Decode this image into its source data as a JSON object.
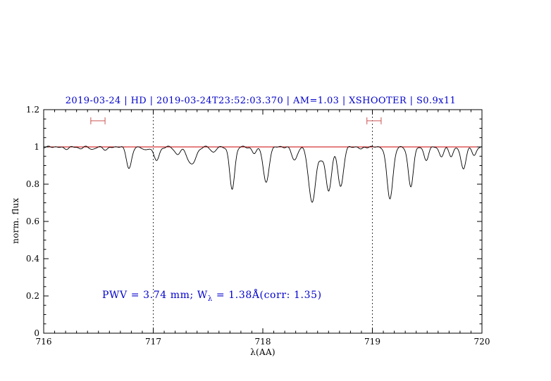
{
  "chart_data": {
    "type": "line",
    "title": "2019-03-24 | HD | 2019-03-24T23:52:03.370 | AM=1.03 | XSHOOTER | S0.9x11",
    "xlabel": "λ(AA)",
    "ylabel": "norm. flux",
    "xlim": [
      716,
      720
    ],
    "ylim": [
      0,
      1.2
    ],
    "xticks": {
      "major": [
        716,
        717,
        718,
        719,
        720
      ],
      "labels": [
        "716",
        "717",
        "718",
        "719",
        "720"
      ],
      "minor_step": 0.1
    },
    "yticks": {
      "major": [
        0,
        0.2,
        0.4,
        0.6,
        0.8,
        1,
        1.2
      ],
      "labels": [
        "0",
        "0.2",
        "0.4",
        "0.6",
        "0.8",
        "1",
        "1.2"
      ],
      "minor_step": 0.05
    },
    "grid": false,
    "legend": "none",
    "title_color": "#0000cd",
    "annotation_color": "#0000cd",
    "series_color": "#000000",
    "continuum": {
      "y": 1.0,
      "color": "#cc0000"
    },
    "dotted_vlines": [
      717,
      719
    ],
    "range_markers": [
      {
        "x1": 716.43,
        "x2": 716.56,
        "y": 1.14,
        "color": "#cc5555"
      },
      {
        "x1": 718.95,
        "x2": 719.08,
        "y": 1.14,
        "color": "#cc5555"
      }
    ],
    "annotation": {
      "text": "PWV = 3.74 mm; W_λ = 1.38Å(corr: 1.35)",
      "pre": "PWV = 3.74 mm; W",
      "sub": "λ",
      "post": " = 1.38Å(corr: 1.35)"
    },
    "spectrum_model": {
      "continuum_level": 1.0,
      "noise_amplitude": 0.003,
      "sample_step": 0.004,
      "absorption_lines": [
        {
          "center": 716.2,
          "depth": 0.01,
          "fwhm": 0.06
        },
        {
          "center": 716.33,
          "depth": 0.008,
          "fwhm": 0.05
        },
        {
          "center": 716.45,
          "depth": 0.014,
          "fwhm": 0.05
        },
        {
          "center": 716.57,
          "depth": 0.016,
          "fwhm": 0.05
        },
        {
          "center": 716.78,
          "depth": 0.115,
          "fwhm": 0.055
        },
        {
          "center": 716.93,
          "depth": 0.02,
          "fwhm": 0.05
        },
        {
          "center": 717.03,
          "depth": 0.072,
          "fwhm": 0.06
        },
        {
          "center": 717.22,
          "depth": 0.04,
          "fwhm": 0.06
        },
        {
          "center": 717.35,
          "depth": 0.095,
          "fwhm": 0.09
        },
        {
          "center": 717.55,
          "depth": 0.03,
          "fwhm": 0.05
        },
        {
          "center": 717.72,
          "depth": 0.225,
          "fwhm": 0.055
        },
        {
          "center": 717.92,
          "depth": 0.035,
          "fwhm": 0.05
        },
        {
          "center": 718.03,
          "depth": 0.195,
          "fwhm": 0.06
        },
        {
          "center": 718.29,
          "depth": 0.07,
          "fwhm": 0.06
        },
        {
          "center": 718.45,
          "depth": 0.3,
          "fwhm": 0.075
        },
        {
          "center": 718.53,
          "depth": 0.05,
          "fwhm": 0.05
        },
        {
          "center": 718.6,
          "depth": 0.235,
          "fwhm": 0.065
        },
        {
          "center": 718.71,
          "depth": 0.215,
          "fwhm": 0.06
        },
        {
          "center": 718.9,
          "depth": 0.012,
          "fwhm": 0.04
        },
        {
          "center": 719.16,
          "depth": 0.275,
          "fwhm": 0.065
        },
        {
          "center": 719.35,
          "depth": 0.215,
          "fwhm": 0.055
        },
        {
          "center": 719.49,
          "depth": 0.07,
          "fwhm": 0.05
        },
        {
          "center": 719.63,
          "depth": 0.05,
          "fwhm": 0.05
        },
        {
          "center": 719.72,
          "depth": 0.05,
          "fwhm": 0.045
        },
        {
          "center": 719.83,
          "depth": 0.115,
          "fwhm": 0.055
        },
        {
          "center": 719.93,
          "depth": 0.045,
          "fwhm": 0.045
        }
      ]
    }
  }
}
